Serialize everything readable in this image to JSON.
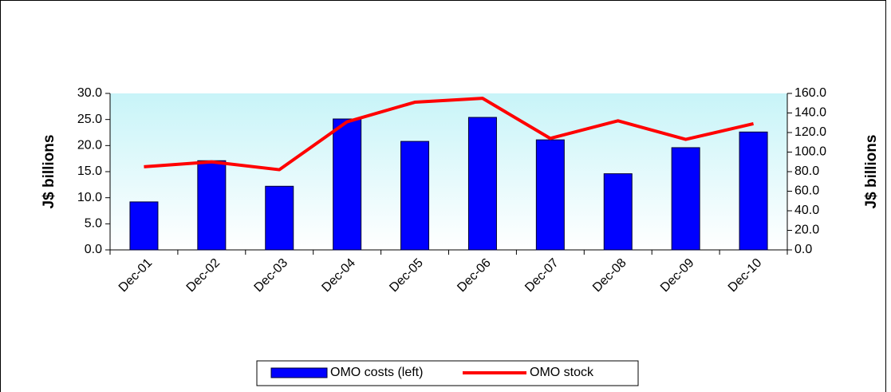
{
  "chart_data": {
    "type": "bar",
    "categories": [
      "Dec-01",
      "Dec-02",
      "Dec-03",
      "Dec-04",
      "Dec-05",
      "Dec-06",
      "Dec-07",
      "Dec-08",
      "Dec-09",
      "Dec-10"
    ],
    "series": [
      {
        "name": "OMO costs (left)",
        "type": "bar",
        "color": "#0000ff",
        "values": [
          9.2,
          17.1,
          12.2,
          25.1,
          20.8,
          25.4,
          21.1,
          14.6,
          19.6,
          22.6
        ]
      },
      {
        "name": "OMO stock",
        "type": "line",
        "axis": "y2",
        "color": "#ff0000",
        "values": [
          85,
          90,
          82,
          131,
          151,
          155,
          114,
          132,
          113,
          129
        ]
      }
    ],
    "y_label": "J$ billions",
    "y2_label": "J$ billions",
    "ylim": [
      0,
      30
    ],
    "yticks": [
      {
        "value": 0,
        "label": "0.0"
      },
      {
        "value": 5,
        "label": "5.0"
      },
      {
        "value": 10,
        "label": "10.0"
      },
      {
        "value": 15,
        "label": "15.0"
      },
      {
        "value": 20,
        "label": "20.0"
      },
      {
        "value": 25,
        "label": "25.0"
      },
      {
        "value": 30,
        "label": "30.0"
      }
    ],
    "y2lim": [
      0,
      160
    ],
    "y2ticks": [
      {
        "value": 0,
        "label": "0.0"
      },
      {
        "value": 20,
        "label": "20.0"
      },
      {
        "value": 40,
        "label": "40.0"
      },
      {
        "value": 60,
        "label": "60.0"
      },
      {
        "value": 80,
        "label": "80.0"
      },
      {
        "value": 100,
        "label": "100.0"
      },
      {
        "value": 120,
        "label": "120.0"
      },
      {
        "value": 140,
        "label": "140.0"
      },
      {
        "value": 160,
        "label": "160.0"
      }
    ],
    "legend": "bottom"
  }
}
